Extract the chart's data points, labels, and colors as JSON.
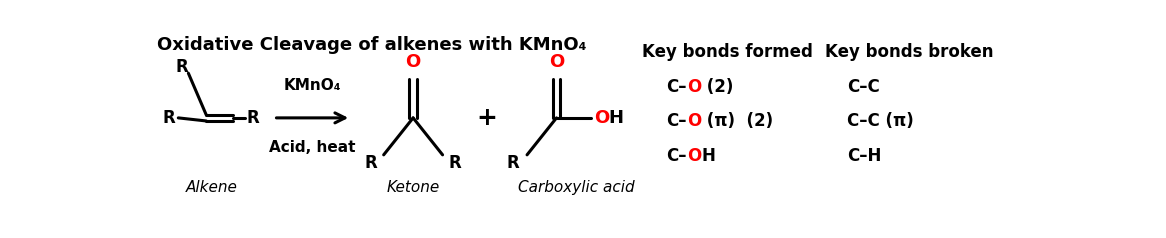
{
  "title": "Oxidative Cleavage of alkenes with KMnO₄",
  "title_fontsize": 13,
  "background_color": "#ffffff",
  "black": "#000000",
  "red": "#ff0000",
  "fig_width": 11.66,
  "fig_height": 2.38,
  "reagent_line1": "KMnO₄",
  "reagent_line2": "Acid, heat",
  "label_alkene": "Alkene",
  "label_ketone": "Ketone",
  "label_carboxylic": "Carboxylic acid",
  "header_formed": "Key bonds formed",
  "header_broken": "Key bonds broken",
  "bonds_broken": [
    "C–C",
    "C–C (π)",
    "C–H"
  ],
  "pi": "π",
  "endash": "–"
}
